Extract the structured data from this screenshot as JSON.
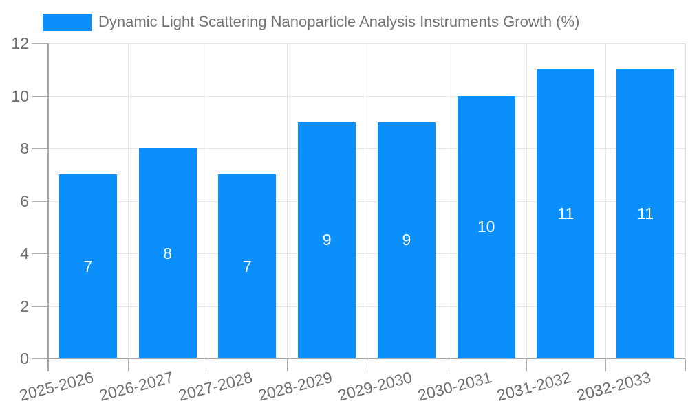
{
  "legend": {
    "swatch": "series-color",
    "label": "Dynamic Light Scattering Nanoparticle Analysis Instruments Growth (%)"
  },
  "chart_data": {
    "type": "bar",
    "title": "Dynamic Light Scattering Nanoparticle Analysis Instruments Growth (%)",
    "categories": [
      "2025-2026",
      "2026-2027",
      "2027-2028",
      "2028-2029",
      "2029-2030",
      "2030-2031",
      "2031-2032",
      "2032-2033"
    ],
    "values": [
      7,
      8,
      7,
      9,
      9,
      10,
      11,
      11
    ],
    "bar_value_labels": [
      "7",
      "8",
      "7",
      "9",
      "9",
      "10",
      "11",
      "11"
    ],
    "xlabel": "",
    "ylabel": "",
    "ylim": [
      0,
      12
    ],
    "yticks": [
      0,
      2,
      4,
      6,
      8,
      10,
      12
    ],
    "grid": true,
    "legend_position": "top-left",
    "x_label_rotation_deg": -14.5
  },
  "colors": {
    "bar": "#0A8FFB",
    "bar_label": "#FFFFFF",
    "grid": "#E6E6E6",
    "axis": "#ADADAD",
    "axis_strong": "#A6A6A6",
    "text": "#6F6F6F",
    "title": "#757575",
    "background": "#FFFFFF"
  }
}
